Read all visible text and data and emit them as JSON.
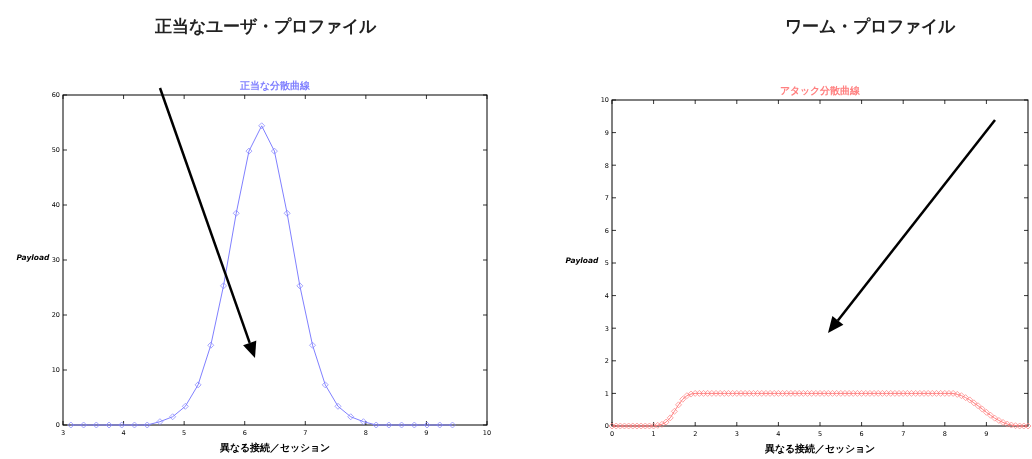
{
  "chart_data": [
    {
      "type": "line",
      "title": "正当なユーザ・プロファイル",
      "subtitle": "正当な分散曲線",
      "xlabel": "異なる接続／セッション",
      "ylabel": "Payload",
      "marker": "diamond",
      "x": [
        3.13,
        3.34,
        3.55,
        3.76,
        3.97,
        4.18,
        4.39,
        4.6,
        4.81,
        5.02,
        5.23,
        5.44,
        5.65,
        5.86,
        6.07,
        6.28,
        6.49,
        6.7,
        6.91,
        7.12,
        7.33,
        7.54,
        7.75,
        7.96,
        8.17,
        8.38,
        8.59,
        8.8,
        9.01,
        9.22,
        9.43
      ],
      "series": [
        {
          "color": "#8080ff",
          "values": [
            0,
            0,
            0,
            0,
            0,
            0,
            0,
            0.6,
            1.5,
            3.4,
            7.3,
            14.5,
            25.3,
            38.5,
            49.8,
            54.4,
            49.8,
            38.5,
            25.3,
            14.5,
            7.3,
            3.4,
            1.5,
            0.6,
            0,
            0,
            0,
            0,
            0,
            0,
            0
          ]
        }
      ],
      "xlim": [
        3,
        10
      ],
      "ylim": [
        0,
        60
      ],
      "xticks": [
        3,
        4,
        5,
        6,
        7,
        8,
        9,
        10
      ],
      "yticks": [
        0,
        10,
        20,
        30,
        40,
        50,
        60
      ]
    },
    {
      "type": "line",
      "title": "ワーム・プロファイル",
      "subtitle": "アタック分散曲線",
      "xlabel": "異なる接続／セッション",
      "ylabel": "Payload",
      "marker": "diamond",
      "x": [
        0,
        0.1,
        0.2,
        0.3,
        0.4,
        0.5,
        0.6,
        0.7,
        0.8,
        0.9,
        1,
        1.1,
        1.2,
        1.3,
        1.4,
        1.5,
        1.6,
        1.7,
        1.8,
        1.9,
        2,
        2.1,
        2.2,
        2.3,
        2.4,
        2.5,
        2.6,
        2.7,
        2.8,
        2.9,
        3,
        3.1,
        3.2,
        3.3,
        3.4,
        3.5,
        3.6,
        3.7,
        3.8,
        3.9,
        4,
        4.1,
        4.2,
        4.3,
        4.4,
        4.5,
        4.6,
        4.7,
        4.8,
        4.9,
        5,
        5.1,
        5.2,
        5.3,
        5.4,
        5.5,
        5.6,
        5.7,
        5.8,
        5.9,
        6,
        6.1,
        6.2,
        6.3,
        6.4,
        6.5,
        6.6,
        6.7,
        6.8,
        6.9,
        7,
        7.1,
        7.2,
        7.3,
        7.4,
        7.5,
        7.6,
        7.7,
        7.8,
        7.9,
        8,
        8.1,
        8.2,
        8.3,
        8.4,
        8.5,
        8.6,
        8.7,
        8.8,
        8.9,
        9,
        9.1,
        9.2,
        9.3,
        9.4,
        9.5,
        9.6,
        9.7,
        9.8,
        9.9,
        10
      ],
      "series": [
        {
          "color": "#ff8080",
          "values": [
            0,
            0,
            0,
            0,
            0,
            0,
            0,
            0,
            0,
            0,
            0,
            0.02,
            0.05,
            0.12,
            0.25,
            0.45,
            0.65,
            0.82,
            0.93,
            0.98,
            1,
            1,
            1,
            1,
            1,
            1,
            1,
            1,
            1,
            1,
            1,
            1,
            1,
            1,
            1,
            1,
            1,
            1,
            1,
            1,
            1,
            1,
            1,
            1,
            1,
            1,
            1,
            1,
            1,
            1,
            1,
            1,
            1,
            1,
            1,
            1,
            1,
            1,
            1,
            1,
            1,
            1,
            1,
            1,
            1,
            1,
            1,
            1,
            1,
            1,
            1,
            1,
            1,
            1,
            1,
            1,
            1,
            1,
            1,
            1,
            1,
            1,
            1,
            0.97,
            0.93,
            0.87,
            0.8,
            0.71,
            0.62,
            0.52,
            0.42,
            0.33,
            0.24,
            0.17,
            0.11,
            0.06,
            0.03,
            0.01,
            0,
            0,
            0
          ]
        }
      ],
      "xlim": [
        0,
        10
      ],
      "ylim": [
        0,
        10
      ],
      "xticks": [
        0,
        1,
        2,
        3,
        4,
        5,
        6,
        7,
        8,
        9
      ],
      "yticks": [
        0,
        1,
        2,
        3,
        4,
        5,
        6,
        7,
        8,
        9,
        10
      ]
    }
  ]
}
